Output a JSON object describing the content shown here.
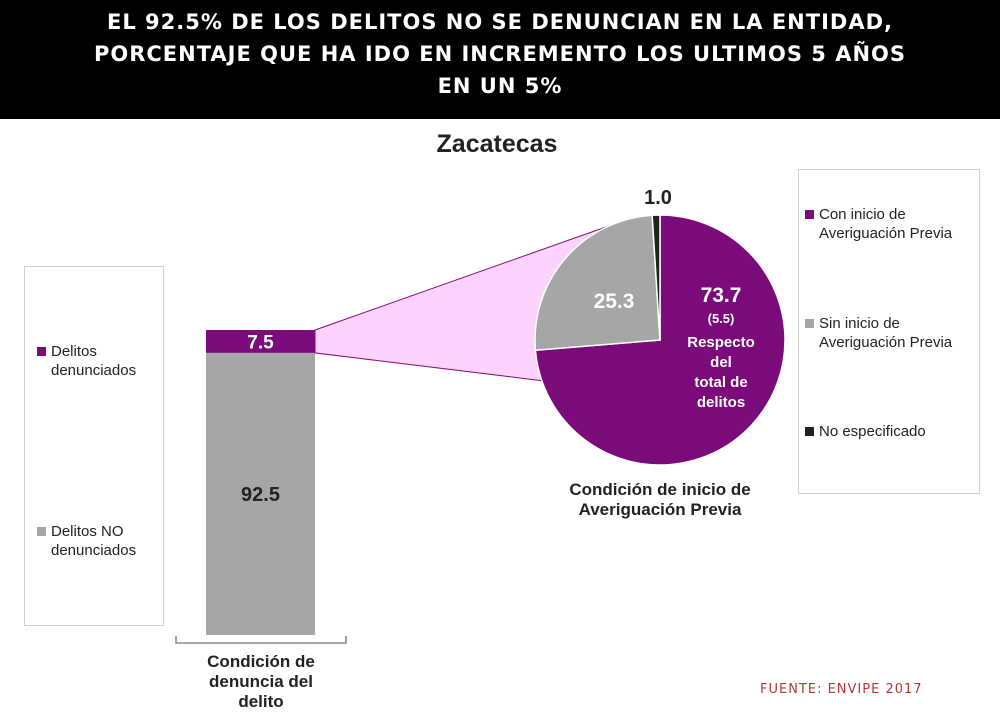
{
  "banner": {
    "lines": [
      "EL 92.5% DE LOS DELITOS NO SE DENUNCIAN EN LA ENTIDAD,",
      "PORCENTAJE QUE HA IDO EN INCREMENTO LOS ULTIMOS 5 AÑOS",
      "EN UN 5%"
    ]
  },
  "source": "FUENTE: ENVIPE 2017",
  "colors": {
    "purple": "#7b0a7b",
    "gray": "#a6a6a6",
    "black": "#222222",
    "connector": "#fdd3fd"
  },
  "chart_data": [
    {
      "type": "bar",
      "stacked": true,
      "title": "Zacatecas",
      "categories": [
        "Condición de denuncia del delito"
      ],
      "xlabel_lines": [
        "Condición de",
        "denuncia del",
        "delito"
      ],
      "series": [
        {
          "name": "Delitos NO denunciados",
          "name_lines": [
            "Delitos NO",
            "denunciados"
          ],
          "values": [
            92.5
          ],
          "color": "#a6a6a6",
          "label": "92.5"
        },
        {
          "name": "Delitos denunciados",
          "name_lines": [
            "Delitos",
            "denunciados"
          ],
          "values": [
            7.5
          ],
          "color": "#7b0a7b",
          "label": "7.5"
        }
      ],
      "ylim": [
        0,
        100
      ],
      "legend": "left"
    },
    {
      "type": "pie",
      "title_lines": [
        "Condición de inicio de",
        "Averiguación Previa"
      ],
      "slices": [
        {
          "name": "Con inicio de Averiguación Previa",
          "name_lines": [
            "Con inicio de",
            "Averiguación Previa"
          ],
          "value": 73.7,
          "color": "#7b0a7b",
          "label_lines": [
            "73.7",
            "(5.5)",
            "Respecto",
            "del",
            "total de",
            "delitos"
          ]
        },
        {
          "name": "Sin inicio de Averiguación Previa",
          "name_lines": [
            "Sin inicio de",
            "Averiguación Previa"
          ],
          "value": 25.3,
          "color": "#a6a6a6",
          "label_lines": [
            "25.3"
          ]
        },
        {
          "name": "No especificado",
          "name_lines": [
            "No especificado"
          ],
          "value": 1.0,
          "color": "#222222",
          "label_lines": [
            "1.0"
          ]
        }
      ],
      "legend": "right"
    }
  ]
}
